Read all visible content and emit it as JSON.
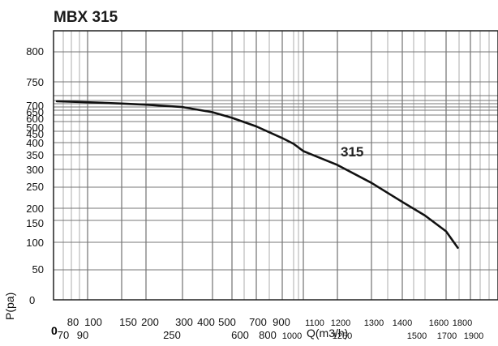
{
  "chart_data": {
    "type": "line",
    "title": "MBX 315",
    "xlabel": "Q(m3/h)",
    "ylabel": "P(pa)",
    "origin_label": "0",
    "y_zero_label": "0",
    "series_label": "315",
    "x_ticks_top": [
      "80",
      "100",
      "150",
      "200",
      "300",
      "400",
      "500",
      "700",
      "900",
      "1100",
      "1200",
      "1300",
      "1400",
      "1600",
      "1800"
    ],
    "x_ticks_bottom": [
      "70",
      "90",
      "250",
      "600",
      "800",
      "1000",
      "1250",
      "1500",
      "1700",
      "1900"
    ],
    "y_ticks": [
      "800",
      "750",
      "700",
      "650",
      "600",
      "500",
      "450",
      "400",
      "350",
      "300",
      "250",
      "200",
      "150",
      "100",
      "50"
    ],
    "series": [
      {
        "name": "315",
        "points": [
          {
            "q": 70,
            "p": 702
          },
          {
            "q": 100,
            "p": 699
          },
          {
            "q": 150,
            "p": 690
          },
          {
            "q": 200,
            "p": 682
          },
          {
            "q": 300,
            "p": 666
          },
          {
            "q": 400,
            "p": 628
          },
          {
            "q": 500,
            "p": 565
          },
          {
            "q": 700,
            "p": 475
          },
          {
            "q": 900,
            "p": 420
          },
          {
            "q": 1000,
            "p": 395
          },
          {
            "q": 1100,
            "p": 365
          },
          {
            "q": 1200,
            "p": 315
          },
          {
            "q": 1300,
            "p": 262
          },
          {
            "q": 1400,
            "p": 215
          },
          {
            "q": 1500,
            "p": 170
          },
          {
            "q": 1600,
            "p": 125
          },
          {
            "q": 1690,
            "p": 90
          }
        ]
      }
    ],
    "grid": true
  }
}
